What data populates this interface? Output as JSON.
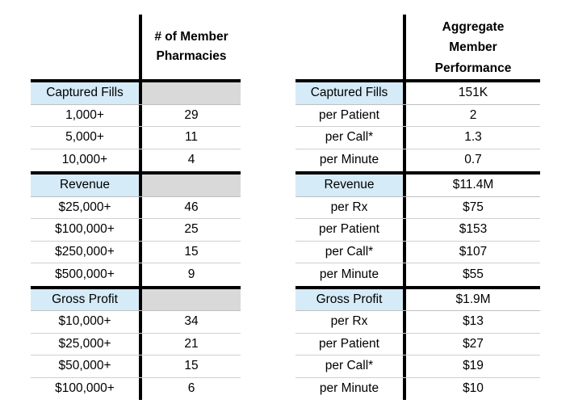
{
  "left_table": {
    "header": "# of Member\nPharmacies",
    "sections": [
      {
        "label": "Captured Fills",
        "rows": [
          {
            "label": "1,000+",
            "value": "29"
          },
          {
            "label": "5,000+",
            "value": "11"
          },
          {
            "label": "10,000+",
            "value": "4"
          }
        ]
      },
      {
        "label": "Revenue",
        "rows": [
          {
            "label": "$25,000+",
            "value": "46"
          },
          {
            "label": "$100,000+",
            "value": "25"
          },
          {
            "label": "$250,000+",
            "value": "15"
          },
          {
            "label": "$500,000+",
            "value": "9"
          }
        ]
      },
      {
        "label": "Gross Profit",
        "rows": [
          {
            "label": "$10,000+",
            "value": "34"
          },
          {
            "label": "$25,000+",
            "value": "21"
          },
          {
            "label": "$50,000+",
            "value": "15"
          },
          {
            "label": "$100,000+",
            "value": "6"
          }
        ]
      }
    ]
  },
  "right_table": {
    "header": "Aggregate\nMember\nPerformance",
    "sections": [
      {
        "label": "Captured Fills",
        "value": "151K",
        "rows": [
          {
            "label": "per Patient",
            "value": "2"
          },
          {
            "label": "per Call*",
            "value": "1.3"
          },
          {
            "label": "per Minute",
            "value": "0.7"
          }
        ]
      },
      {
        "label": "Revenue",
        "value": "$11.4M",
        "rows": [
          {
            "label": "per Rx",
            "value": "$75"
          },
          {
            "label": "per Patient",
            "value": "$153"
          },
          {
            "label": "per Call*",
            "value": "$107"
          },
          {
            "label": "per Minute",
            "value": "$55"
          }
        ]
      },
      {
        "label": "Gross Profit",
        "value": "$1.9M",
        "rows": [
          {
            "label": "per Rx",
            "value": "$13"
          },
          {
            "label": "per Patient",
            "value": "$27"
          },
          {
            "label": "per Call*",
            "value": "$19"
          },
          {
            "label": "per Minute",
            "value": "$10"
          }
        ]
      }
    ]
  },
  "colors": {
    "section_label_bg": "#d5ebf7",
    "section_blank_bg": "#d9d9d9",
    "rule": "#000000"
  }
}
